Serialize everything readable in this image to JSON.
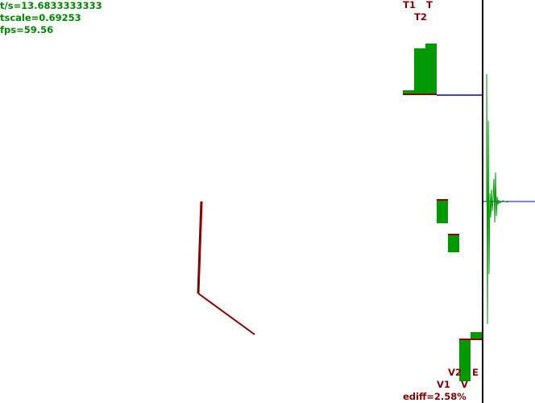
{
  "stats": {
    "time": "t/s=13.6833333333",
    "tscale": "tscale=0.69253",
    "fps": "fps=59.56"
  },
  "energy_bars": {
    "labels": {
      "t1": "T1",
      "t": "T",
      "t2": "T2",
      "v1": "V1",
      "v": "V",
      "v2": "V2",
      "e": "E"
    },
    "ediff": "ediff=2.58%"
  },
  "colors": {
    "stats_text": "#008800",
    "label_text": "#8b0000",
    "bar_fill": "#009900",
    "baseline": "#8b0000",
    "pendulum": "#8b0000",
    "trace_line": "#0000cc",
    "axis": "#000000",
    "signal": "#009900"
  }
}
